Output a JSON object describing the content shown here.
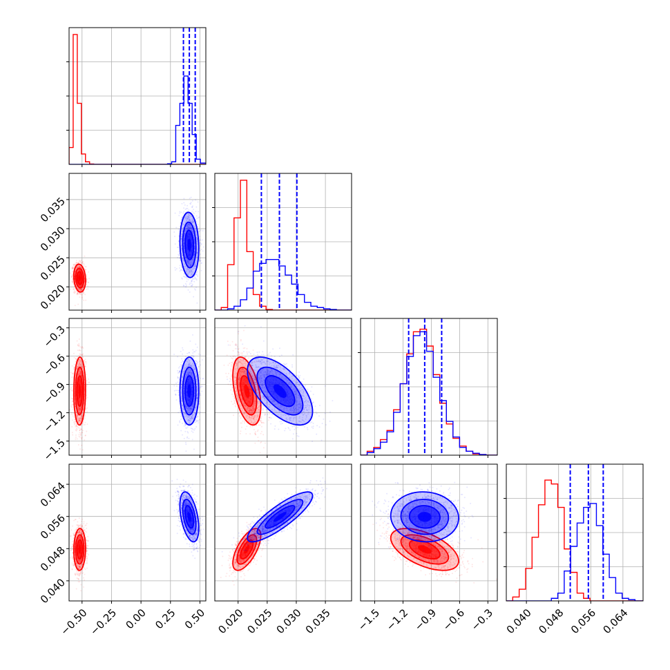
{
  "colors": {
    "red": "#ff0000",
    "blue": "#0000ff",
    "grid": "#b0b0b0",
    "frame": "#000000"
  },
  "chart_data": {
    "type": "corner",
    "parameters": [
      {
        "range": [
          -0.61,
          0.55
        ],
        "ticks": [
          "−0.50",
          "−0.25",
          "0.00",
          "0.25",
          "0.50"
        ],
        "tick_values": [
          -0.5,
          -0.25,
          0.0,
          0.25,
          0.5
        ]
      },
      {
        "range": [
          0.016,
          0.0395
        ],
        "ticks": [
          "0.020",
          "0.025",
          "0.030",
          "0.035"
        ],
        "tick_values": [
          0.02,
          0.025,
          0.03,
          0.035
        ]
      },
      {
        "range": [
          -1.65,
          -0.2
        ],
        "ticks": [
          "−1.5",
          "−1.2",
          "−0.9",
          "−0.6",
          "−0.3"
        ],
        "tick_values": [
          -1.5,
          -1.2,
          -0.9,
          -0.6,
          -0.3
        ]
      },
      {
        "range": [
          0.035,
          0.069
        ],
        "ticks": [
          "0.040",
          "0.048",
          "0.056",
          "0.064"
        ],
        "tick_values": [
          0.04,
          0.048,
          0.056,
          0.064
        ]
      }
    ],
    "grid": true,
    "series": [
      {
        "color": "red",
        "mean": [
          -0.52,
          0.0215,
          -0.97,
          0.0478
        ],
        "sd": [
          0.025,
          0.0012,
          0.18,
          0.0026
        ],
        "corr": [
          [
            0,
            1,
            -0.15
          ],
          [
            0,
            2,
            0.05
          ],
          [
            0,
            3,
            0.05
          ],
          [
            1,
            2,
            -0.45
          ],
          [
            1,
            3,
            0.65
          ],
          [
            2,
            3,
            -0.55
          ]
        ]
      },
      {
        "color": "blue",
        "mean": [
          0.41,
          0.0272,
          -0.97,
          0.0559
        ],
        "sd": [
          0.04,
          0.0028,
          0.18,
          0.0031
        ],
        "corr": [
          [
            0,
            1,
            -0.1
          ],
          [
            0,
            2,
            0.0
          ],
          [
            0,
            3,
            -0.45
          ],
          [
            1,
            2,
            -0.6
          ],
          [
            1,
            3,
            0.85
          ],
          [
            2,
            3,
            -0.05
          ]
        ]
      }
    ],
    "quantile_lines": [
      [
        0.36,
        0.41,
        0.46
      ],
      [
        0.024,
        0.0271,
        0.0301
      ],
      [
        -1.14,
        -0.97,
        -0.79
      ],
      [
        0.0509,
        0.0554,
        0.0591
      ]
    ],
    "histograms": [
      {
        "bins": [
          -0.61,
          -0.5752,
          -0.5404,
          -0.5056,
          -0.4708,
          -0.436,
          -0.4012,
          -0.3664,
          -0.3316,
          -0.2968,
          -0.262,
          -0.2272,
          -0.1924,
          -0.1576,
          -0.1228,
          -0.088,
          -0.0532,
          -0.0184,
          0.0164,
          0.0512,
          0.086,
          0.1208,
          0.1556,
          0.1904,
          0.2252,
          0.26,
          0.2948,
          0.3296,
          0.3644,
          0.3992,
          0.434,
          0.4688,
          0.5036,
          0.55
        ],
        "red": [
          0.13,
          1.0,
          0.47,
          0.08,
          0.02,
          0.003,
          0,
          0,
          0,
          0,
          0,
          0,
          0,
          0,
          0,
          0,
          0,
          0,
          0,
          0,
          0,
          0,
          0,
          0,
          0,
          0,
          0,
          0,
          0,
          0,
          0,
          0,
          0
        ],
        "blue": [
          0,
          0,
          0,
          0,
          0,
          0,
          0,
          0,
          0,
          0,
          0,
          0,
          0,
          0,
          0,
          0,
          0,
          0,
          0,
          0,
          0,
          0,
          0,
          0,
          0.005,
          0.02,
          0.3,
          0.47,
          0.68,
          0.47,
          0.23,
          0.04,
          0.01
        ]
      },
      {
        "bins": [
          0.016,
          0.0171,
          0.0182,
          0.0193,
          0.0204,
          0.0215,
          0.0226,
          0.0237,
          0.0248,
          0.0259,
          0.027,
          0.0281,
          0.0292,
          0.0303,
          0.0314,
          0.0325,
          0.0336,
          0.0347,
          0.0358,
          0.0369,
          0.038,
          0.0395
        ],
        "red": [
          0,
          0.02,
          0.35,
          0.71,
          1.0,
          0.45,
          0.12,
          0.03,
          0.005,
          0,
          0,
          0,
          0,
          0,
          0,
          0,
          0,
          0,
          0,
          0,
          0
        ],
        "blue": [
          0,
          0,
          0.01,
          0.03,
          0.08,
          0.17,
          0.3,
          0.36,
          0.39,
          0.39,
          0.34,
          0.27,
          0.2,
          0.12,
          0.06,
          0.03,
          0.02,
          0.01,
          0.005,
          0,
          0
        ]
      },
      {
        "bins": [
          -1.65,
          -1.58,
          -1.51,
          -1.44,
          -1.37,
          -1.3,
          -1.23,
          -1.16,
          -1.09,
          -1.02,
          -0.95,
          -0.88,
          -0.81,
          -0.74,
          -0.67,
          -0.6,
          -0.53,
          -0.46,
          -0.39,
          -0.32,
          -0.25,
          -0.2
        ],
        "red": [
          0,
          0.03,
          0.06,
          0.12,
          0.19,
          0.35,
          0.55,
          0.78,
          0.95,
          0.97,
          0.84,
          0.62,
          0.4,
          0.24,
          0.13,
          0.07,
          0.03,
          0.01,
          0.005,
          0,
          0
        ],
        "blue": [
          0,
          0.02,
          0.05,
          0.1,
          0.18,
          0.33,
          0.55,
          0.76,
          0.92,
          0.95,
          0.8,
          0.6,
          0.42,
          0.26,
          0.14,
          0.06,
          0.03,
          0.015,
          0.005,
          0,
          0
        ]
      },
      {
        "bins": [
          0.035,
          0.0366,
          0.0382,
          0.0398,
          0.0414,
          0.043,
          0.0446,
          0.0462,
          0.0478,
          0.0494,
          0.051,
          0.0526,
          0.0542,
          0.0558,
          0.0574,
          0.059,
          0.0606,
          0.0622,
          0.0638,
          0.0654,
          0.067,
          0.069
        ],
        "red": [
          0,
          0.03,
          0.09,
          0.25,
          0.49,
          0.74,
          0.93,
          0.9,
          0.72,
          0.4,
          0.22,
          0.06,
          0.02,
          0,
          0,
          0,
          0,
          0,
          0,
          0,
          0
        ],
        "blue": [
          0,
          0,
          0,
          0,
          0,
          0,
          0,
          0.02,
          0.06,
          0.23,
          0.42,
          0.6,
          0.72,
          0.75,
          0.58,
          0.36,
          0.18,
          0.06,
          0.02,
          0.01,
          0
        ]
      }
    ]
  }
}
